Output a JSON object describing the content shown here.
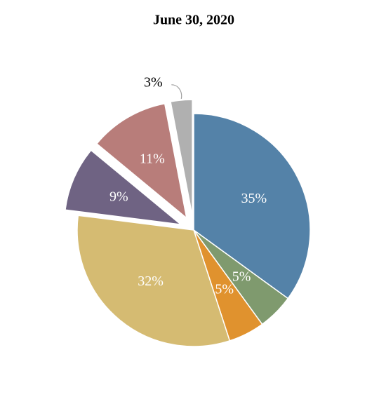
{
  "chart_data": {
    "type": "pie",
    "title": "June 30, 2020",
    "values": [
      35,
      5,
      5,
      32,
      9,
      11,
      3
    ],
    "value_labels": [
      "35%",
      "5%",
      "5%",
      "32%",
      "9%",
      "11%",
      "3%"
    ],
    "colors": [
      "#5482a8",
      "#7f9a6e",
      "#e0922e",
      "#d5bb72",
      "#6f6383",
      "#b87d7a",
      "#b0b0b0"
    ],
    "exploded": [
      false,
      false,
      false,
      false,
      true,
      true,
      true
    ]
  }
}
